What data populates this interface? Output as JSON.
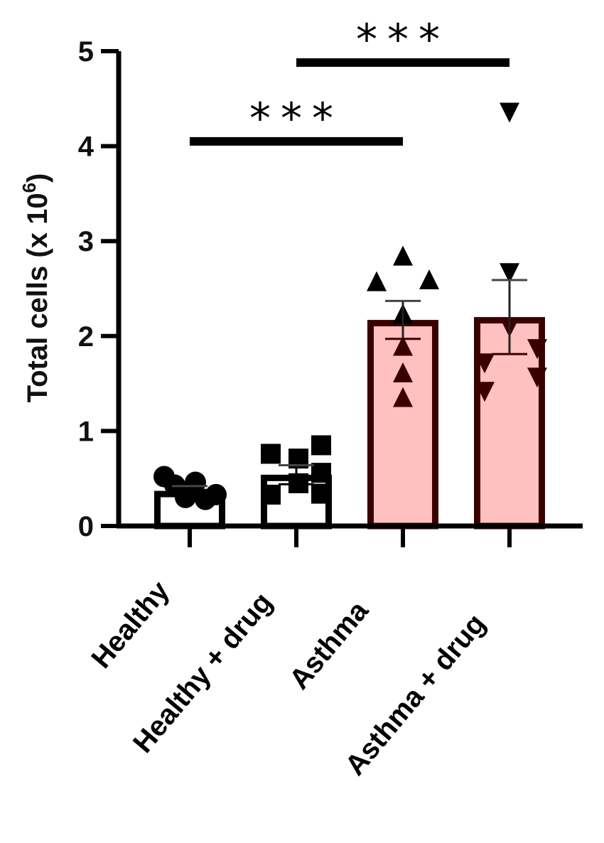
{
  "chart_data": {
    "type": "bar",
    "title": "",
    "xlabel": "",
    "ylabel": "Total cells (x 10",
    "ylabel_superscript": "6",
    "ylabel_suffix": ")",
    "ylim": [
      0,
      5
    ],
    "yticks": [
      0,
      1,
      2,
      3,
      4,
      5
    ],
    "grid": false,
    "legend": null,
    "categories": [
      "Healthy",
      "Healthy + drug",
      "Asthma",
      "Asthma + drug"
    ],
    "values": [
      0.37,
      0.54,
      2.17,
      2.2
    ],
    "error_sem": [
      0.05,
      0.1,
      0.2,
      0.39
    ],
    "bar_fill": [
      "#ffffff",
      "#ffffff",
      "#ffc0c0",
      "#ffc0c0"
    ],
    "bar_stroke": [
      "#000000",
      "#000000",
      "#3a0000",
      "#3a0000"
    ],
    "markers": [
      "circle",
      "square",
      "triangle-up",
      "triangle-down"
    ],
    "points": [
      [
        0.52,
        0.43,
        0.3,
        0.46,
        0.28,
        0.33
      ],
      [
        0.76,
        0.33,
        0.71,
        0.45,
        0.85,
        0.56,
        0.34
      ],
      [
        2.84,
        2.57,
        2.59,
        2.23,
        1.89,
        1.61,
        1.35
      ],
      [
        4.36,
        2.67,
        2.1,
        1.87,
        1.72,
        1.57,
        1.42
      ]
    ],
    "points_xoffset": [
      [
        -36,
        -21,
        -6,
        8,
        22,
        37
      ],
      [
        -36,
        -36,
        3,
        3,
        35,
        35,
        35
      ],
      [
        0,
        -37,
        37,
        0,
        0,
        0,
        0
      ],
      [
        0,
        0,
        0,
        39,
        -35,
        39,
        -35
      ]
    ],
    "annotations": [
      {
        "from": 0,
        "to": 2,
        "y": 4.05,
        "label": "***"
      },
      {
        "from": 1,
        "to": 3,
        "y": 4.88,
        "label": "***"
      }
    ]
  }
}
